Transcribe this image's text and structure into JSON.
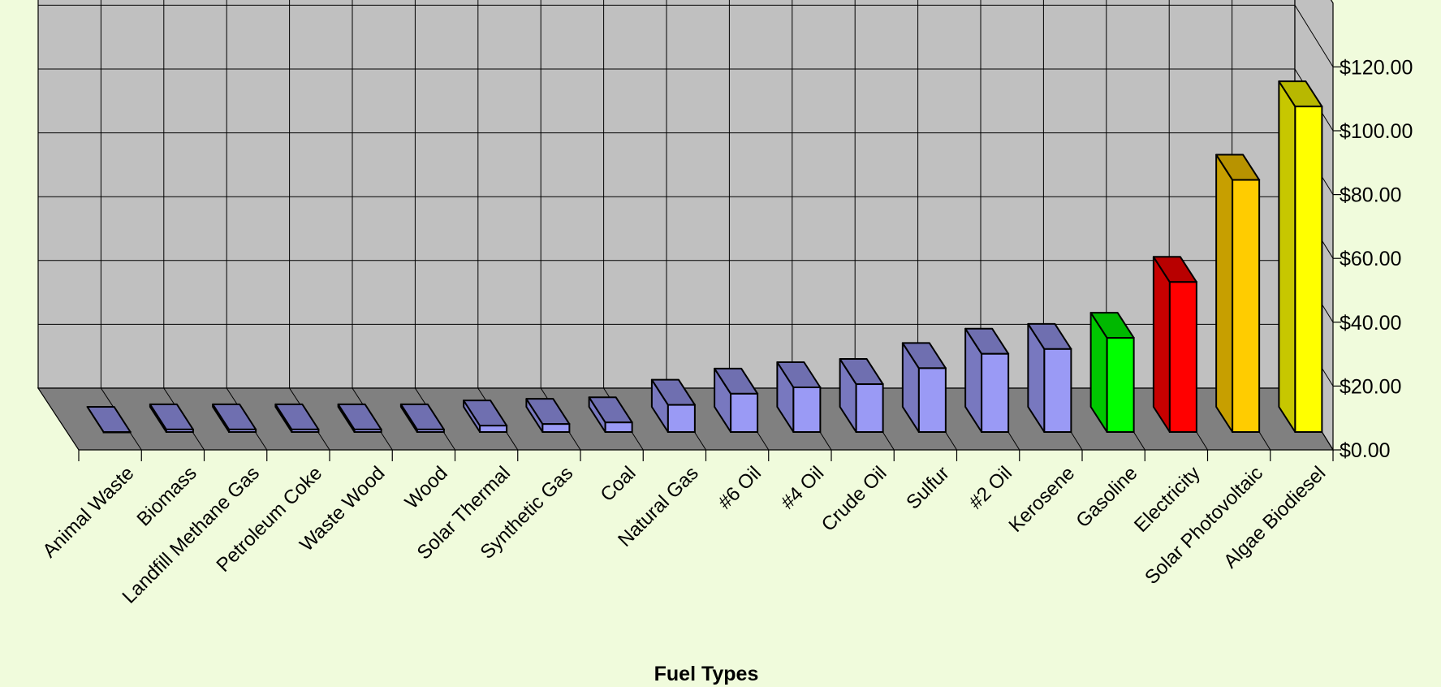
{
  "chart_data": {
    "type": "bar",
    "xlabel": "Fuel Types",
    "ylabel": "",
    "title": "",
    "ylim": [
      0,
      140
    ],
    "y_ticks": [
      "$0.00",
      "$20.00",
      "$40.00",
      "$60.00",
      "$80.00",
      "$100.00",
      "$120.00"
    ],
    "categories": [
      "Animal Waste",
      "Biomass",
      "Landfill Methane Gas",
      "Petroleum Coke",
      "Waste Wood",
      "Wood",
      "Solar Thermal",
      "Synthetic Gas",
      "Coal",
      "Natural Gas",
      "#6 Oil",
      "#4 Oil",
      "Crude Oil",
      "Sulfur",
      "#2 Oil",
      "Kerosene",
      "Gasoline",
      "Electricity",
      "Solar Photovoltaic",
      "Algae Biodiesel"
    ],
    "values": [
      0.0,
      0.8,
      0.8,
      0.8,
      0.8,
      0.8,
      2.0,
      2.5,
      3.0,
      8.5,
      12.0,
      14.0,
      15.0,
      20.0,
      24.5,
      26.0,
      29.5,
      47.0,
      79.0,
      102.0
    ],
    "bar_colors": [
      "#9a9af5",
      "#9a9af5",
      "#9a9af5",
      "#9a9af5",
      "#9a9af5",
      "#9a9af5",
      "#9a9af5",
      "#9a9af5",
      "#9a9af5",
      "#9a9af5",
      "#9a9af5",
      "#9a9af5",
      "#9a9af5",
      "#9a9af5",
      "#9a9af5",
      "#9a9af5",
      "#00ff00",
      "#ff0000",
      "#ffcc00",
      "#ffff00"
    ],
    "wall_color": "#c0c0c0",
    "floor_color": "#808080",
    "grid": true,
    "legend": "none"
  }
}
